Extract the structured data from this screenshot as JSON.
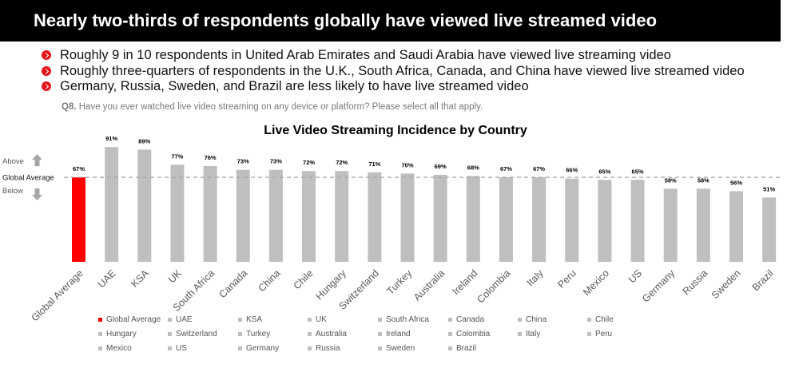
{
  "header": {
    "title": "Nearly two-thirds of respondents globally have viewed live streamed video"
  },
  "bullets": [
    "Roughly 9 in 10 respondents in United Arab Emirates and Saudi Arabia have viewed live streaming video",
    "Roughly three-quarters of respondents in the U.K., South Africa, Canada, and China have viewed live streamed video",
    "Germany, Russia, Sweden, and Brazil are less likely to have live streamed video"
  ],
  "question": {
    "number": "Q8.",
    "text": "Have you ever watched live video streaming on any device or platform? Please select all that apply."
  },
  "reference": {
    "above": "Above",
    "label": "Global Average",
    "below": "Below"
  },
  "colors": {
    "highlight": "#ff0000",
    "bar": "#bfbfbf",
    "bullet": "#e3141b",
    "header_bg": "#000000"
  },
  "chart_data": {
    "type": "bar",
    "title": "Live Video Streaming Incidence by Country",
    "categories": [
      "Global Average",
      "UAE",
      "KSA",
      "UK",
      "South Africa",
      "Canada",
      "China",
      "Chile",
      "Hungary",
      "Switzerland",
      "Turkey",
      "Australia",
      "Ireland",
      "Colombia",
      "Italy",
      "Peru",
      "Mexico",
      "US",
      "Germany",
      "Russia",
      "Sweden",
      "Brazil"
    ],
    "values": [
      67,
      91,
      89,
      77,
      76,
      73,
      73,
      72,
      72,
      71,
      70,
      69,
      68,
      67,
      67,
      66,
      65,
      65,
      58,
      58,
      56,
      51
    ],
    "value_labels": [
      "67%",
      "91%",
      "89%",
      "77%",
      "76%",
      "73%",
      "73%",
      "72%",
      "72%",
      "71%",
      "70%",
      "69%",
      "68%",
      "67%",
      "67%",
      "66%",
      "65%",
      "65%",
      "58%",
      "58%",
      "56%",
      "51%"
    ],
    "reference_line": 67,
    "highlight_index": 0,
    "ylim": [
      0,
      100
    ],
    "grid": false,
    "legend": "bottom"
  }
}
